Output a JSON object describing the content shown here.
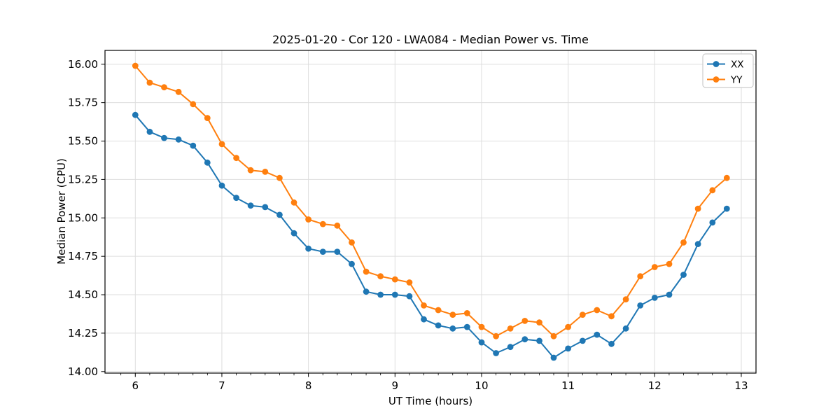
{
  "chart_data": {
    "type": "line",
    "title": "2025-01-20 - Cor 120 - LWA084 - Median Power vs. Time",
    "xlabel": "UT Time (hours)",
    "ylabel": "Median Power (CPU)",
    "xlim": [
      5.65,
      13.17
    ],
    "ylim": [
      13.99,
      16.09
    ],
    "x_ticks": [
      6,
      7,
      8,
      9,
      10,
      11,
      12,
      13
    ],
    "x_minor_tick_interval": 0.1667,
    "y_ticks": [
      14.0,
      14.25,
      14.5,
      14.75,
      15.0,
      15.25,
      15.5,
      15.75,
      16.0
    ],
    "y_tick_decimals": 2,
    "grid": true,
    "grid_color": "#dddddd",
    "axis_color": "#000000",
    "background_color": "#ffffff",
    "legend": {
      "position": "upper-right",
      "border_color": "#cccccc"
    },
    "x": [
      6.0,
      6.167,
      6.333,
      6.5,
      6.667,
      6.833,
      7.0,
      7.167,
      7.333,
      7.5,
      7.667,
      7.833,
      8.0,
      8.167,
      8.333,
      8.5,
      8.667,
      8.833,
      9.0,
      9.167,
      9.333,
      9.5,
      9.667,
      9.833,
      10.0,
      10.167,
      10.333,
      10.5,
      10.667,
      10.833,
      11.0,
      11.167,
      11.333,
      11.5,
      11.667,
      11.833,
      12.0,
      12.167,
      12.333,
      12.5,
      12.667,
      12.833
    ],
    "series": [
      {
        "name": "XX",
        "color": "#1f77b4",
        "marker": "circle",
        "values": [
          15.67,
          15.56,
          15.52,
          15.51,
          15.47,
          15.36,
          15.21,
          15.13,
          15.08,
          15.07,
          15.02,
          14.9,
          14.8,
          14.78,
          14.78,
          14.7,
          14.52,
          14.5,
          14.5,
          14.49,
          14.34,
          14.3,
          14.28,
          14.29,
          14.19,
          14.12,
          14.16,
          14.21,
          14.2,
          14.09,
          14.15,
          14.2,
          14.24,
          14.18,
          14.28,
          14.43,
          14.48,
          14.5,
          14.63,
          14.83,
          14.97,
          15.06
        ]
      },
      {
        "name": "YY",
        "color": "#ff7f0e",
        "marker": "circle",
        "values": [
          15.99,
          15.88,
          15.85,
          15.82,
          15.74,
          15.65,
          15.48,
          15.39,
          15.31,
          15.3,
          15.26,
          15.1,
          14.99,
          14.96,
          14.95,
          14.84,
          14.65,
          14.62,
          14.6,
          14.58,
          14.43,
          14.4,
          14.37,
          14.38,
          14.29,
          14.23,
          14.28,
          14.33,
          14.32,
          14.23,
          14.29,
          14.37,
          14.4,
          14.36,
          14.47,
          14.62,
          14.68,
          14.7,
          14.84,
          15.06,
          15.18,
          15.26
        ]
      }
    ]
  }
}
